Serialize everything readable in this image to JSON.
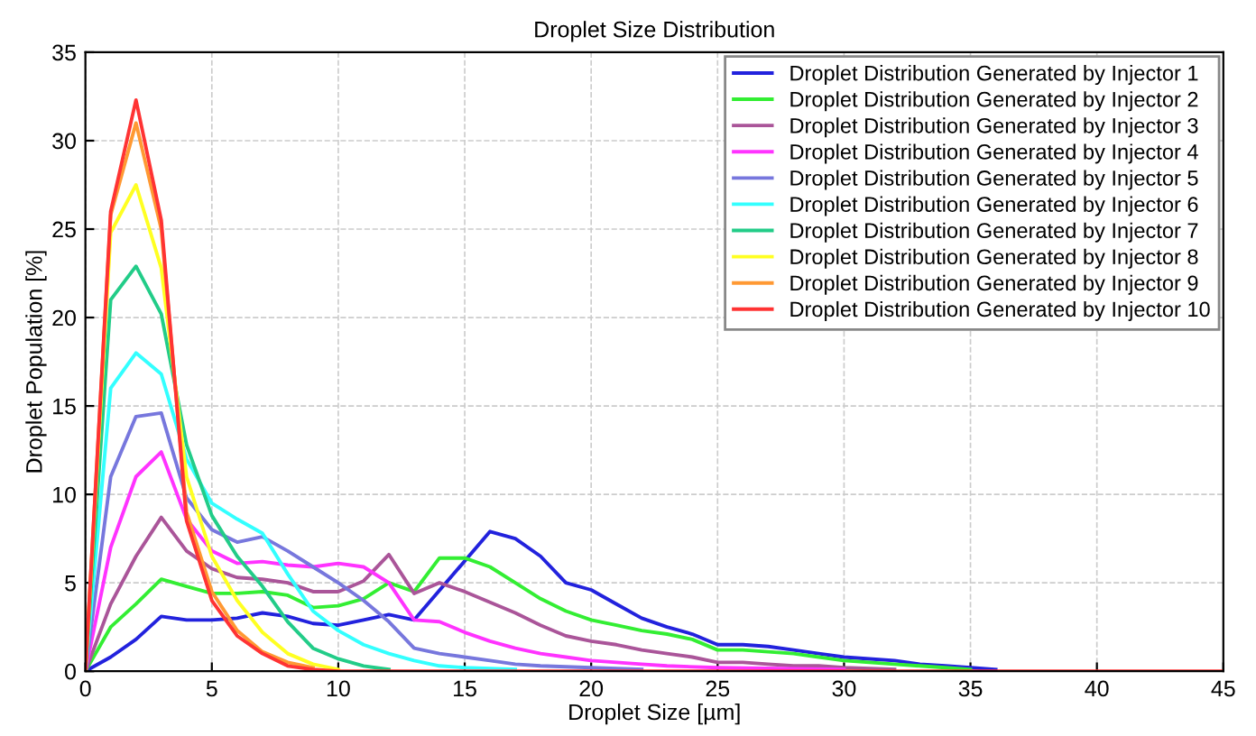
{
  "chart_data": {
    "type": "line",
    "title": "Droplet Size Distribution",
    "xlabel": "Droplet Size [µm]",
    "ylabel": "Droplet Population [%]",
    "xlim": [
      0,
      45
    ],
    "ylim": [
      0,
      35
    ],
    "xticks": [
      0,
      5,
      10,
      15,
      20,
      25,
      30,
      35,
      40,
      45
    ],
    "yticks": [
      0,
      5,
      10,
      15,
      20,
      25,
      30,
      35
    ],
    "grid": true,
    "legend": "top right",
    "line_style": "solid",
    "series": [
      {
        "name": "Droplet Distribution Generated by Injector 1",
        "color": "#2222dd",
        "x": [
          0,
          1,
          2,
          3,
          4,
          5,
          6,
          7,
          8,
          9,
          10,
          11,
          12,
          13,
          16,
          17,
          18,
          19,
          20,
          21,
          22,
          23,
          24,
          25,
          26,
          27,
          28,
          29,
          30,
          31,
          32,
          33,
          34,
          35,
          36
        ],
        "values": [
          0,
          0.8,
          1.8,
          3.1,
          2.9,
          2.9,
          3.0,
          3.3,
          3.1,
          2.7,
          2.6,
          2.9,
          3.2,
          2.9,
          7.9,
          7.5,
          6.5,
          5.0,
          4.6,
          3.8,
          3.0,
          2.5,
          2.1,
          1.5,
          1.5,
          1.4,
          1.2,
          1.0,
          0.8,
          0.7,
          0.6,
          0.4,
          0.3,
          0.2,
          0.1
        ]
      },
      {
        "name": "Droplet Distribution Generated by Injector 2",
        "color": "#33ee33",
        "x": [
          0,
          1,
          2,
          3,
          4,
          5,
          6,
          7,
          8,
          9,
          10,
          11,
          12,
          13,
          14,
          15,
          16,
          17,
          18,
          19,
          20,
          21,
          22,
          23,
          24,
          25,
          26,
          27,
          28,
          29,
          30,
          31,
          32,
          33,
          34,
          35
        ],
        "values": [
          0,
          2.5,
          3.8,
          5.2,
          4.8,
          4.4,
          4.4,
          4.5,
          4.3,
          3.6,
          3.7,
          4.1,
          5.0,
          4.5,
          6.4,
          6.4,
          5.9,
          5.0,
          4.1,
          3.4,
          2.9,
          2.6,
          2.3,
          2.1,
          1.8,
          1.2,
          1.2,
          1.1,
          1.0,
          0.8,
          0.6,
          0.5,
          0.4,
          0.3,
          0.2,
          0.1
        ]
      },
      {
        "name": "Droplet Distribution Generated by Injector 3",
        "color": "#aa5599",
        "x": [
          0,
          1,
          2,
          3,
          4,
          5,
          6,
          7,
          8,
          9,
          10,
          11,
          12,
          13,
          14,
          15,
          16,
          17,
          18,
          19,
          20,
          21,
          22,
          23,
          24,
          25,
          26,
          27,
          28,
          29,
          30,
          32
        ],
        "values": [
          0,
          3.8,
          6.5,
          8.7,
          6.8,
          5.8,
          5.3,
          5.2,
          5.0,
          4.5,
          4.5,
          5.1,
          6.6,
          4.4,
          5.0,
          4.5,
          3.9,
          3.3,
          2.6,
          2.0,
          1.7,
          1.5,
          1.2,
          1.0,
          0.8,
          0.5,
          0.5,
          0.4,
          0.3,
          0.3,
          0.2,
          0.1
        ]
      },
      {
        "name": "Droplet Distribution Generated by Injector 4",
        "color": "#ff33ff",
        "x": [
          0,
          1,
          2,
          3,
          4,
          5,
          6,
          7,
          8,
          9,
          10,
          11,
          12,
          13,
          14,
          15,
          16,
          17,
          18,
          19,
          20,
          21,
          22,
          23,
          25,
          30
        ],
        "values": [
          0,
          7,
          11,
          12.4,
          8.6,
          6.8,
          6.1,
          6.2,
          6.0,
          5.9,
          6.1,
          5.9,
          5.0,
          2.9,
          2.8,
          2.2,
          1.7,
          1.3,
          1.0,
          0.8,
          0.6,
          0.5,
          0.4,
          0.3,
          0.2,
          0.1
        ]
      },
      {
        "name": "Droplet Distribution Generated by Injector 5",
        "color": "#7777dd",
        "x": [
          0,
          1,
          2,
          3,
          4,
          5,
          6,
          7,
          8,
          9,
          10,
          11,
          12,
          13,
          14,
          15,
          16,
          17,
          18,
          20,
          22
        ],
        "values": [
          0,
          11,
          14.4,
          14.6,
          9.8,
          8.0,
          7.3,
          7.6,
          6.8,
          5.9,
          5.0,
          4.0,
          2.8,
          1.3,
          1.0,
          0.8,
          0.6,
          0.4,
          0.3,
          0.2,
          0.1
        ]
      },
      {
        "name": "Droplet Distribution Generated by Injector 6",
        "color": "#33ffff",
        "x": [
          0,
          1,
          2,
          3,
          4,
          5,
          6,
          7,
          8,
          9,
          10,
          11,
          12,
          13,
          14,
          15,
          17
        ],
        "values": [
          0,
          16,
          18,
          16.8,
          12,
          9.5,
          8.6,
          7.8,
          5.5,
          3.4,
          2.3,
          1.5,
          1.0,
          0.6,
          0.3,
          0.2,
          0.1
        ]
      },
      {
        "name": "Droplet Distribution Generated by Injector 7",
        "color": "#22cc88",
        "x": [
          0,
          1,
          2,
          3,
          4,
          5,
          6,
          7,
          8,
          9,
          10,
          11,
          12
        ],
        "values": [
          0,
          21,
          22.9,
          20.2,
          12.8,
          8.8,
          6.5,
          4.8,
          2.8,
          1.3,
          0.7,
          0.3,
          0.1
        ]
      },
      {
        "name": "Droplet Distribution Generated by Injector 8",
        "color": "#ffff22",
        "x": [
          0,
          1,
          2,
          3,
          4,
          5,
          6,
          7,
          8,
          9,
          10
        ],
        "values": [
          0,
          24.8,
          27.5,
          22.8,
          11,
          6.5,
          4.0,
          2.2,
          1.0,
          0.4,
          0.1
        ]
      },
      {
        "name": "Droplet Distribution Generated by Injector 9",
        "color": "#ff9933",
        "x": [
          0,
          1,
          2,
          3,
          4,
          5,
          6,
          7,
          8,
          9
        ],
        "values": [
          0,
          25.8,
          31,
          25,
          9,
          4.5,
          2.3,
          1.1,
          0.5,
          0.2
        ]
      },
      {
        "name": "Droplet Distribution Generated by Injector 10",
        "color": "#ff3333",
        "x": [
          0,
          1,
          2,
          3,
          4,
          5,
          6,
          7,
          8,
          9,
          10,
          45
        ],
        "values": [
          0,
          26,
          32.3,
          25.5,
          8.5,
          4.0,
          2.0,
          1.0,
          0.3,
          0.1,
          0,
          0
        ]
      }
    ]
  }
}
